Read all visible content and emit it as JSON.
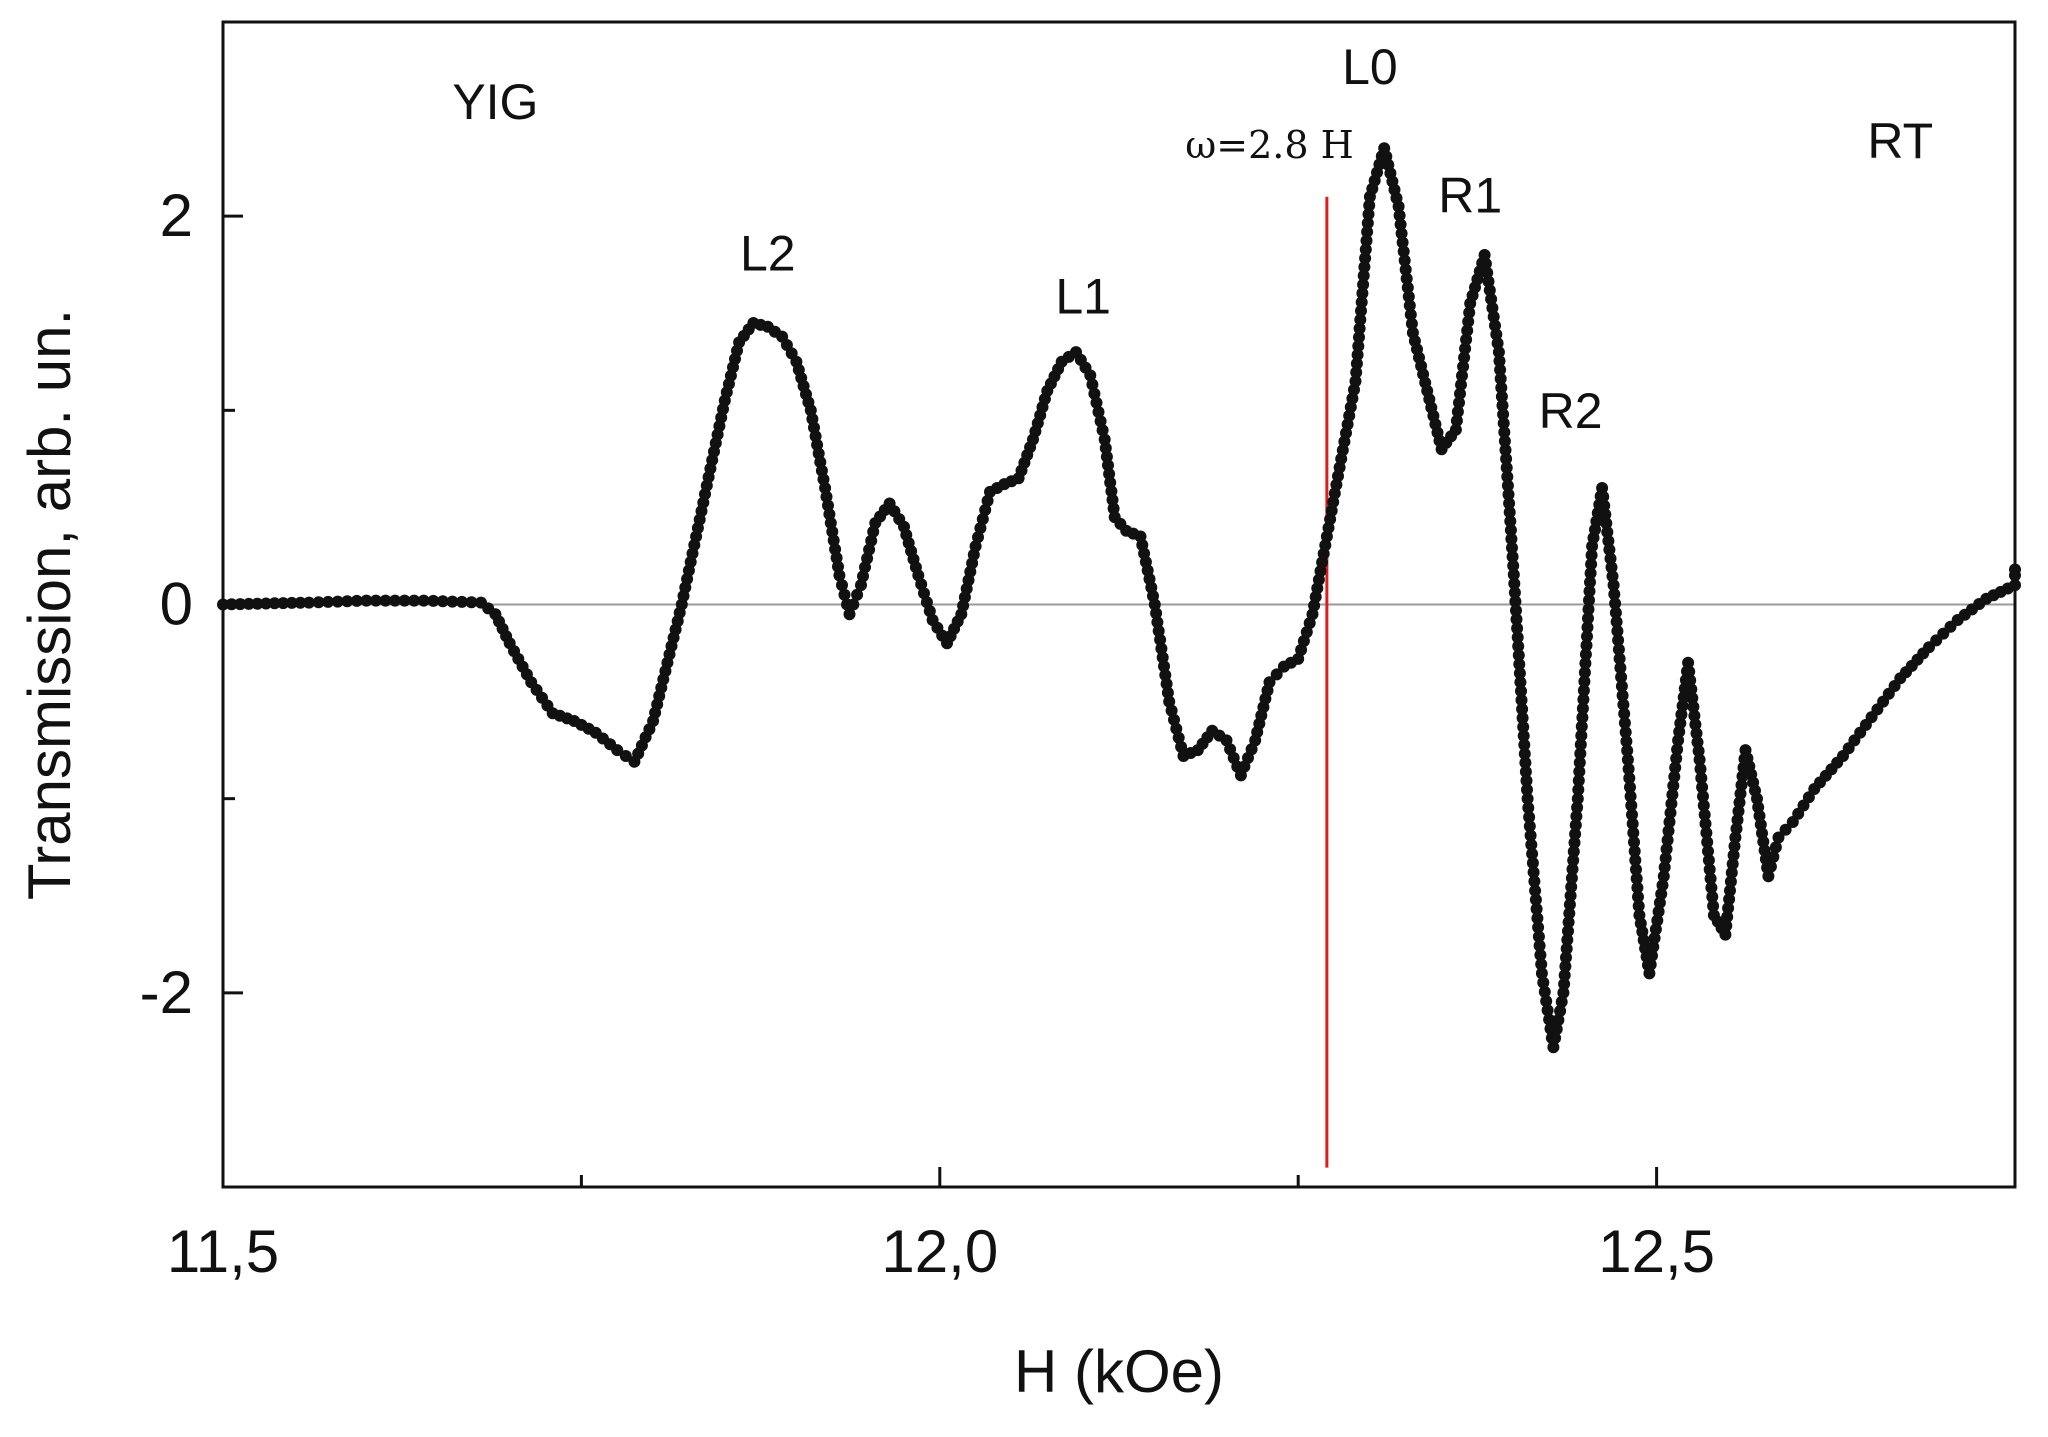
{
  "chart_data": {
    "type": "scatter",
    "xlabel": "H (kOe)",
    "ylabel": "Transmission, arb. un.",
    "xlim": [
      11.5,
      12.75
    ],
    "ylim": [
      -3,
      3
    ],
    "grid": false,
    "legend": "none",
    "x_ticks": [
      {
        "value": 11.5,
        "label": "11,5"
      },
      {
        "value": 12.0,
        "label": "12,0"
      },
      {
        "value": 12.5,
        "label": "12,5"
      }
    ],
    "x_minor_ticks": [
      11.75,
      12.25
    ],
    "y_ticks": [
      {
        "value": 2,
        "label": "2"
      },
      {
        "value": 0,
        "label": "0"
      },
      {
        "value": -2,
        "label": "-2"
      }
    ],
    "y_minor_ticks": [
      1,
      -1
    ],
    "zero_line": 0,
    "marker_line": {
      "x": 12.27,
      "y_range": [
        -2.9,
        2.1
      ],
      "color": "#e01b1b"
    },
    "annotations": [
      {
        "text": "YIG",
        "x": 11.69,
        "y": 2.5
      },
      {
        "text": "RT",
        "x": 12.67,
        "y": 2.3
      },
      {
        "text": "L2",
        "x": 11.88,
        "y": 1.72
      },
      {
        "text": "L1",
        "x": 12.1,
        "y": 1.5
      },
      {
        "text": "L0",
        "x": 12.3,
        "y": 2.68
      },
      {
        "text": "ω=2.8 H",
        "x": 12.23,
        "y": 2.3,
        "serif": true
      },
      {
        "text": "R1",
        "x": 12.37,
        "y": 2.02
      },
      {
        "text": "R2",
        "x": 12.44,
        "y": 0.91
      }
    ],
    "series": [
      {
        "color": "#111111",
        "points": [
          [
            11.5,
            0.0
          ],
          [
            11.56,
            0.01
          ],
          [
            11.6,
            0.02
          ],
          [
            11.64,
            0.02
          ],
          [
            11.68,
            0.01
          ],
          [
            11.69,
            -0.05
          ],
          [
            11.7,
            -0.2
          ],
          [
            11.715,
            -0.4
          ],
          [
            11.73,
            -0.56
          ],
          [
            11.745,
            -0.6
          ],
          [
            11.76,
            -0.66
          ],
          [
            11.775,
            -0.75
          ],
          [
            11.787,
            -0.81
          ],
          [
            11.8,
            -0.6
          ],
          [
            11.81,
            -0.3
          ],
          [
            11.82,
            0.0
          ],
          [
            11.83,
            0.35
          ],
          [
            11.84,
            0.7
          ],
          [
            11.85,
            1.05
          ],
          [
            11.86,
            1.35
          ],
          [
            11.87,
            1.45
          ],
          [
            11.88,
            1.43
          ],
          [
            11.89,
            1.38
          ],
          [
            11.9,
            1.25
          ],
          [
            11.91,
            1.0
          ],
          [
            11.92,
            0.6
          ],
          [
            11.93,
            0.15
          ],
          [
            11.937,
            -0.05
          ],
          [
            11.945,
            0.1
          ],
          [
            11.955,
            0.42
          ],
          [
            11.965,
            0.52
          ],
          [
            11.975,
            0.4
          ],
          [
            11.985,
            0.15
          ],
          [
            11.995,
            -0.08
          ],
          [
            12.005,
            -0.2
          ],
          [
            12.015,
            -0.05
          ],
          [
            12.025,
            0.3
          ],
          [
            12.035,
            0.58
          ],
          [
            12.045,
            0.62
          ],
          [
            12.055,
            0.65
          ],
          [
            12.065,
            0.85
          ],
          [
            12.075,
            1.1
          ],
          [
            12.085,
            1.25
          ],
          [
            12.095,
            1.3
          ],
          [
            12.105,
            1.18
          ],
          [
            12.115,
            0.85
          ],
          [
            12.122,
            0.45
          ],
          [
            12.13,
            0.38
          ],
          [
            12.14,
            0.35
          ],
          [
            12.15,
            0.0
          ],
          [
            12.16,
            -0.5
          ],
          [
            12.17,
            -0.78
          ],
          [
            12.18,
            -0.75
          ],
          [
            12.19,
            -0.65
          ],
          [
            12.2,
            -0.7
          ],
          [
            12.21,
            -0.88
          ],
          [
            12.22,
            -0.7
          ],
          [
            12.23,
            -0.4
          ],
          [
            12.24,
            -0.32
          ],
          [
            12.25,
            -0.28
          ],
          [
            12.26,
            -0.05
          ],
          [
            12.27,
            0.35
          ],
          [
            12.28,
            0.75
          ],
          [
            12.29,
            1.15
          ],
          [
            12.3,
            2.1
          ],
          [
            12.31,
            2.35
          ],
          [
            12.32,
            2.05
          ],
          [
            12.33,
            1.4
          ],
          [
            12.34,
            1.1
          ],
          [
            12.35,
            0.8
          ],
          [
            12.36,
            0.9
          ],
          [
            12.37,
            1.55
          ],
          [
            12.38,
            1.8
          ],
          [
            12.39,
            1.3
          ],
          [
            12.4,
            0.2
          ],
          [
            12.41,
            -1.0
          ],
          [
            12.42,
            -1.9
          ],
          [
            12.428,
            -2.28
          ],
          [
            12.435,
            -2.0
          ],
          [
            12.445,
            -1.0
          ],
          [
            12.455,
            0.3
          ],
          [
            12.462,
            0.6
          ],
          [
            12.47,
            0.1
          ],
          [
            12.48,
            -0.8
          ],
          [
            12.488,
            -1.6
          ],
          [
            12.495,
            -1.9
          ],
          [
            12.505,
            -1.4
          ],
          [
            12.515,
            -0.7
          ],
          [
            12.522,
            -0.3
          ],
          [
            12.53,
            -0.8
          ],
          [
            12.54,
            -1.6
          ],
          [
            12.548,
            -1.7
          ],
          [
            12.555,
            -1.2
          ],
          [
            12.562,
            -0.75
          ],
          [
            12.57,
            -1.0
          ],
          [
            12.578,
            -1.4
          ],
          [
            12.585,
            -1.2
          ],
          [
            12.595,
            -1.12
          ],
          [
            12.61,
            -0.95
          ],
          [
            12.63,
            -0.78
          ],
          [
            12.65,
            -0.58
          ],
          [
            12.67,
            -0.38
          ],
          [
            12.69,
            -0.22
          ],
          [
            12.71,
            -0.08
          ],
          [
            12.73,
            0.03
          ],
          [
            12.75,
            0.1
          ],
          [
            12.79,
            0.15
          ],
          [
            12.83,
            0.18
          ]
        ]
      }
    ]
  }
}
